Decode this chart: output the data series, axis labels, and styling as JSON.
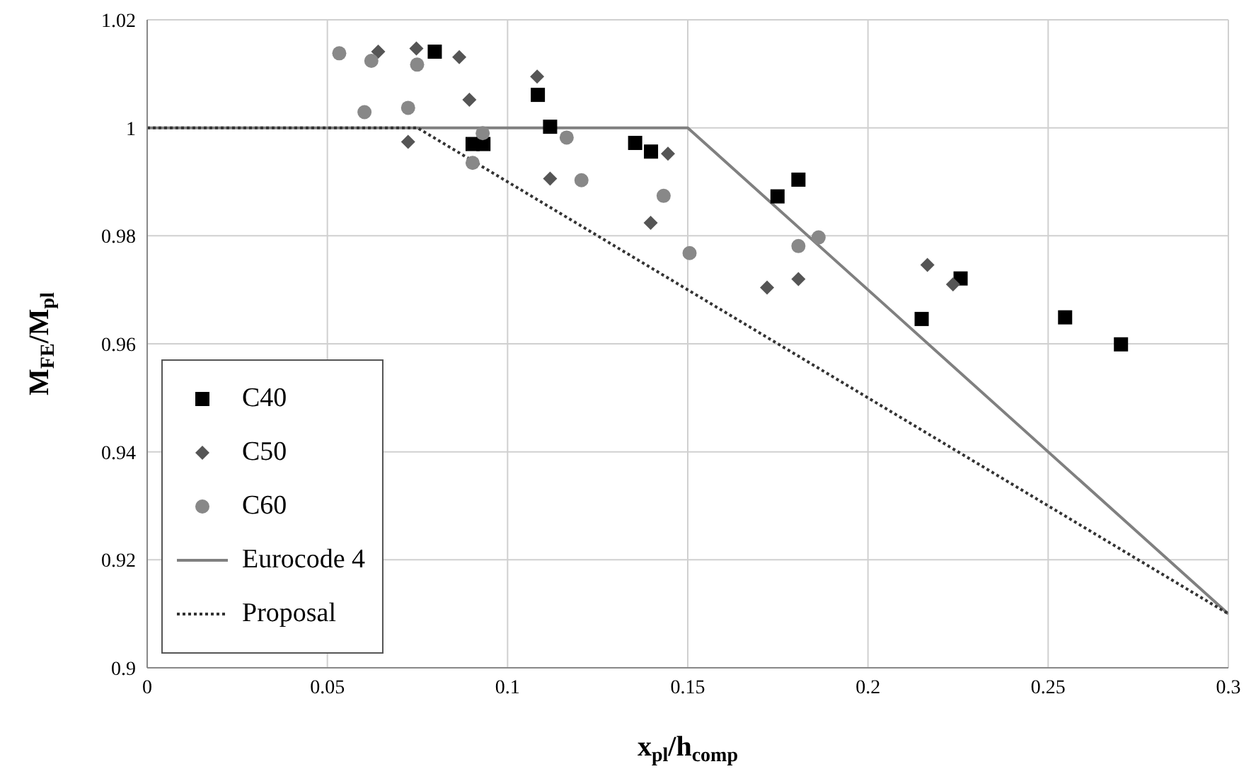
{
  "chart_data": {
    "type": "scatter",
    "xlabel": "x$_{pl}$/h$_{comp}$",
    "ylabel": "M$_{FE}$/M$_{pl}$",
    "xlim": [
      0,
      0.3
    ],
    "xticks": [
      0,
      0.05,
      0.1,
      0.15,
      0.2,
      0.25,
      0.3
    ],
    "ylim": [
      0.9,
      1.02
    ],
    "yticks": [
      0.9,
      0.92,
      0.94,
      0.96,
      0.98,
      1,
      1.02
    ],
    "grid": true,
    "legend": "bottom left",
    "series": [
      {
        "name": "C40",
        "type": "scatter",
        "marker": "square",
        "color": "#000000",
        "x": [
          0.0798,
          0.1084,
          0.0903,
          0.0933,
          0.1118,
          0.1354,
          0.1398,
          0.1749,
          0.1807,
          0.2257,
          0.2149,
          0.2547,
          0.2702
        ],
        "values": [
          1.0141,
          1.0061,
          0.997,
          0.997,
          1.0002,
          0.9972,
          0.9956,
          0.9873,
          0.9904,
          0.9721,
          0.9646,
          0.9649,
          0.9599
        ]
      },
      {
        "name": "C50",
        "type": "scatter",
        "marker": "diamond",
        "color": "#555555",
        "x": [
          0.0641,
          0.0747,
          0.0866,
          0.0894,
          0.0724,
          0.1082,
          0.1118,
          0.1445,
          0.1397,
          0.172,
          0.1807,
          0.2165,
          0.2236
        ],
        "values": [
          1.0141,
          1.0147,
          1.0131,
          1.0052,
          0.9974,
          1.0095,
          0.9906,
          0.9952,
          0.9824,
          0.9704,
          0.972,
          0.9746,
          0.971
        ]
      },
      {
        "name": "C60",
        "type": "scatter",
        "marker": "circle",
        "color": "#888888",
        "x": [
          0.0533,
          0.0622,
          0.0749,
          0.0603,
          0.0724,
          0.0931,
          0.0903,
          0.1164,
          0.1205,
          0.1433,
          0.1505,
          0.1807,
          0.1863
        ],
        "values": [
          1.0138,
          1.0124,
          1.0117,
          1.0029,
          1.0037,
          0.999,
          0.9935,
          0.9982,
          0.9903,
          0.9874,
          0.9768,
          0.9781,
          0.9797
        ]
      },
      {
        "name": "Eurocode 4",
        "type": "line",
        "marker": "none",
        "line_style": "solid",
        "color": "#808080",
        "x": [
          0,
          0.15,
          0.3
        ],
        "values": [
          1,
          1,
          0.91
        ]
      },
      {
        "name": "Proposal",
        "type": "line",
        "marker": "none",
        "line_style": "dotted",
        "color": "#333333",
        "x": [
          0,
          0.075,
          0.3
        ],
        "values": [
          1,
          1,
          0.91
        ]
      }
    ]
  }
}
